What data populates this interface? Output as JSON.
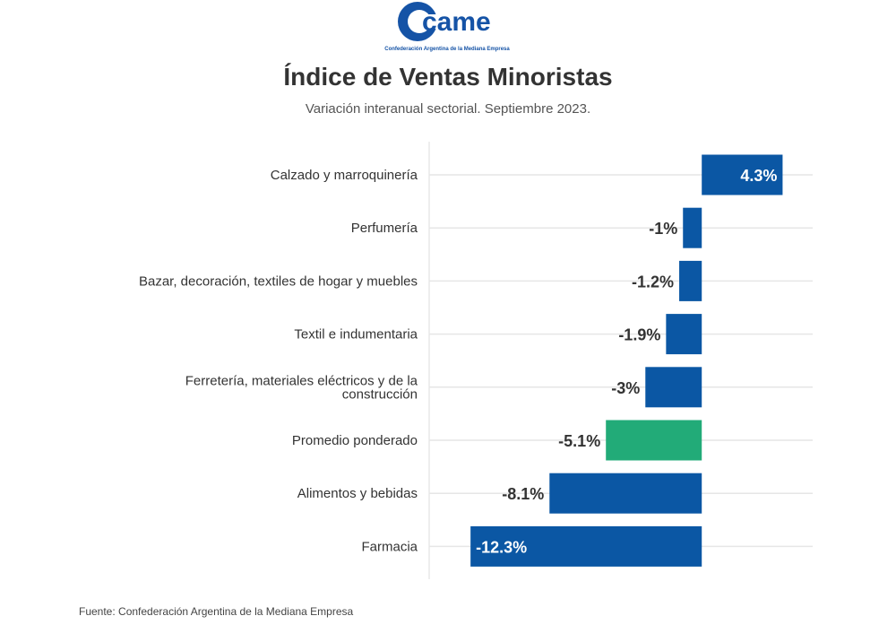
{
  "brand": {
    "logo_text": "came",
    "organization": "Confederación Argentina de la Mediana Empresa",
    "color": "#1553a6"
  },
  "chart_data": {
    "type": "bar",
    "orientation": "horizontal",
    "title": "Índice de Ventas Minoristas",
    "subtitle": "Variación interanual sectorial. Septiembre 2023.",
    "source": "Fuente: Confederación Argentina de la Mediana Empresa",
    "unit": "%",
    "xlim": [
      -14.5,
      5.9
    ],
    "categories": [
      "Calzado y marroquinería",
      "Perfumería",
      "Bazar, decoración, textiles de hogar y muebles",
      "Textil e indumentaria",
      "Ferretería, materiales eléctricos y de la construcción",
      "Promedio ponderado",
      "Alimentos y bebidas",
      "Farmacia"
    ],
    "category_lines": [
      [
        "Calzado y marroquinería"
      ],
      [
        "Perfumería"
      ],
      [
        "Bazar, decoración, textiles de hogar y muebles"
      ],
      [
        "Textil e indumentaria"
      ],
      [
        "Ferretería, materiales eléctricos y de la",
        "construcción"
      ],
      [
        "Promedio ponderado"
      ],
      [
        "Alimentos y bebidas"
      ],
      [
        "Farmacia"
      ]
    ],
    "values": [
      4.3,
      -1,
      -1.2,
      -1.9,
      -3,
      -5.1,
      -8.1,
      -12.3
    ],
    "labels": [
      "4.3%",
      "-1%",
      "-1.2%",
      "-1.9%",
      "-3%",
      "-5.1%",
      "-8.1%",
      "-12.3%"
    ],
    "colors": [
      "#0b57a4",
      "#0b57a4",
      "#0b57a4",
      "#0b57a4",
      "#0b57a4",
      "#22ab78",
      "#0b57a4",
      "#0b57a4"
    ],
    "grid": true
  }
}
